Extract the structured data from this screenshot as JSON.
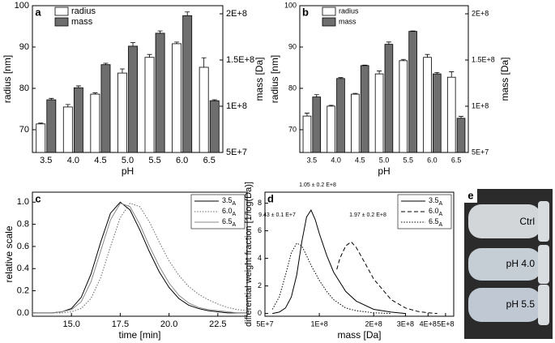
{
  "chart_data": [
    {
      "panel": "a",
      "type": "bar",
      "categories": [
        "3.5",
        "4.0",
        "4.5",
        "5.0",
        "5.5",
        "6.0",
        "6.5"
      ],
      "xlabel": "pH",
      "ylabel": "radius [nm]",
      "y2label": "mass [Da]",
      "ylim": [
        64.5,
        100
      ],
      "yticks": [
        70,
        80,
        90,
        100
      ],
      "y2lim": [
        50000000,
        208800000
      ],
      "y2ticks": [
        {
          "value": 50000000,
          "label": "5E+7"
        },
        {
          "value": 100000000,
          "label": "1E+8"
        },
        {
          "value": 150000000,
          "label": "1.5E+8"
        },
        {
          "value": 200000000,
          "label": "2E+8"
        }
      ],
      "legend": "upper left",
      "series": [
        {
          "name": "radius",
          "color": "#ffffff",
          "values": [
            71.4,
            75.5,
            78.6,
            83.7,
            87.5,
            90.8,
            85.1
          ],
          "errors": [
            0.2,
            0.6,
            0.3,
            1.0,
            0.7,
            0.4,
            2.3
          ]
        },
        {
          "name": "mass",
          "color": "#6e6e6e",
          "axis": "y2",
          "values": [
            107000000,
            120000000,
            145000000,
            165000000,
            179000000,
            198000000,
            106000000
          ],
          "errors": [
            1500000,
            2000000,
            1500000,
            4000000,
            2500000,
            4000000,
            1000000
          ]
        }
      ]
    },
    {
      "panel": "b",
      "type": "bar",
      "categories": [
        "3.5",
        "4.0",
        "4.5",
        "5.0",
        "5.5",
        "6.0",
        "6.5"
      ],
      "xlabel": "pH",
      "ylabel": "radius [nm]",
      "y2label": "mass [Da]",
      "ylim": [
        64.5,
        100
      ],
      "yticks": [
        70,
        80,
        90,
        100
      ],
      "y2lim": [
        50000000,
        208800000
      ],
      "y2ticks": [
        {
          "value": 50000000,
          "label": "5E+7"
        },
        {
          "value": 100000000,
          "label": "1E+8"
        },
        {
          "value": 150000000,
          "label": "1.5E+8"
        },
        {
          "value": 200000000,
          "label": "2E+8"
        }
      ],
      "legend": "upper left",
      "series": [
        {
          "name": "radius",
          "color": "#ffffff",
          "values": [
            73.3,
            75.7,
            78.6,
            83.5,
            86.7,
            87.5,
            82.7
          ],
          "errors": [
            0.7,
            0.2,
            0.2,
            0.7,
            0.3,
            0.7,
            1.3
          ]
        },
        {
          "name": "mass",
          "color": "#6e6e6e",
          "axis": "y2",
          "values": [
            110000000,
            130000000,
            144000000,
            167000000,
            181000000,
            135000000,
            87000000
          ],
          "errors": [
            2500000,
            1000000,
            500000,
            2500000,
            500000,
            1500000,
            2000000
          ]
        }
      ]
    },
    {
      "panel": "c",
      "type": "line",
      "xlabel": "time [min]",
      "ylabel": "relative scale",
      "xlim": [
        13,
        24
      ],
      "xticks": [
        {
          "value": 15,
          "label": "15.0"
        },
        17.5,
        {
          "value": 20,
          "label": "20.0"
        },
        22.5
      ],
      "ylim": [
        -0.03,
        1.09
      ],
      "yticks": [
        {
          "value": 0,
          "label": "0.0"
        },
        0.2,
        0.4,
        0.6,
        0.8,
        {
          "value": 1,
          "label": "1.0"
        }
      ],
      "legend": "upper right",
      "series": [
        {
          "name": "3.5",
          "subscript": "A",
          "color": "#000000",
          "dash": "solid",
          "x": [
            13,
            14,
            14.5,
            15,
            15.5,
            16,
            16.5,
            17,
            17.5,
            18,
            18.5,
            19,
            19.5,
            20,
            20.5,
            21,
            21.5,
            22,
            22.5,
            23,
            23.5,
            24
          ],
          "values": [
            0,
            0,
            0.01,
            0.04,
            0.14,
            0.35,
            0.64,
            0.9,
            1.0,
            0.93,
            0.75,
            0.55,
            0.37,
            0.23,
            0.13,
            0.07,
            0.04,
            0.02,
            0.01,
            0,
            0,
            0
          ]
        },
        {
          "name": "6.0",
          "subscript": "A",
          "color": "#666666",
          "dash": "dotted",
          "x": [
            13,
            14,
            14.5,
            15,
            15.5,
            16,
            16.5,
            17,
            17.5,
            18,
            18.5,
            19,
            19.5,
            20,
            20.5,
            21,
            21.5,
            22,
            22.5,
            23,
            23.5,
            24
          ],
          "values": [
            0,
            0,
            0,
            0.01,
            0.04,
            0.13,
            0.32,
            0.6,
            0.86,
            0.99,
            0.96,
            0.82,
            0.64,
            0.47,
            0.34,
            0.24,
            0.17,
            0.12,
            0.08,
            0.05,
            0.03,
            0.02
          ]
        },
        {
          "name": "6.5",
          "subscript": "A",
          "color": "#888888",
          "dash": "solid",
          "x": [
            13,
            14,
            14.5,
            15,
            15.5,
            16,
            16.5,
            17,
            17.5,
            18,
            18.5,
            19,
            19.5,
            20,
            20.5,
            21,
            21.5,
            22,
            22.5,
            23,
            23.5,
            24
          ],
          "values": [
            0,
            0,
            0.01,
            0.03,
            0.1,
            0.28,
            0.56,
            0.84,
            0.99,
            0.96,
            0.8,
            0.6,
            0.42,
            0.27,
            0.16,
            0.09,
            0.05,
            0.03,
            0.02,
            0.01,
            0,
            0
          ]
        }
      ]
    },
    {
      "panel": "d",
      "type": "line",
      "xscale": "log",
      "xlabel": "mass [Da]",
      "ylabel": "differential weight fraction [1/log(Da)]",
      "xlim": [
        50000000,
        555000000
      ],
      "xticks": [
        {
          "value": 50000000,
          "label": "5E+7"
        },
        {
          "value": 100000000,
          "label": "1E+8"
        },
        {
          "value": 200000000,
          "label": "2E+8"
        },
        {
          "value": 300000000,
          "label": "3E+8"
        },
        {
          "value": 400000000,
          "label": "4E+8"
        },
        {
          "value": 500000000,
          "label": "5E+8"
        }
      ],
      "ylim": [
        -0.2,
        8.8
      ],
      "yticks": [
        0,
        2,
        4,
        6,
        8
      ],
      "legend": "upper right",
      "annotations": [
        "1.05 ± 0.2 E+8",
        "9.43 ± 0.1 E+7",
        "1.97 ± 0.2 E+8"
      ],
      "series": [
        {
          "name": "3.5",
          "subscript": "A",
          "color": "#000000",
          "dash": "solid",
          "x": [
            55000000,
            60000000,
            65000000,
            70000000,
            75000000,
            80000000,
            85000000,
            90000000,
            95000000,
            100000000,
            110000000,
            120000000,
            140000000,
            160000000,
            200000000,
            250000000,
            300000000
          ],
          "values": [
            0,
            0.1,
            0.4,
            1.2,
            2.8,
            5.2,
            7.0,
            7.5,
            6.8,
            5.8,
            4.2,
            3.0,
            1.6,
            0.9,
            0.3,
            0.1,
            0
          ]
        },
        {
          "name": "6.0",
          "subscript": "A",
          "color": "#000000",
          "dash": "dashed",
          "x": [
            125000000,
            130000000,
            140000000,
            150000000,
            160000000,
            180000000,
            200000000,
            250000000,
            300000000,
            350000000,
            400000000,
            450000000
          ],
          "values": [
            3.2,
            4.0,
            4.9,
            5.2,
            4.8,
            3.6,
            2.5,
            1.0,
            0.4,
            0.15,
            0.05,
            0
          ]
        },
        {
          "name": "6.5",
          "subscript": "A",
          "color": "#000000",
          "dash": "dotted",
          "x": [
            55000000,
            60000000,
            65000000,
            70000000,
            75000000,
            80000000,
            85000000,
            90000000,
            100000000,
            110000000,
            120000000,
            140000000,
            160000000,
            200000000,
            250000000
          ],
          "values": [
            0.3,
            1.2,
            2.8,
            4.4,
            5.1,
            4.9,
            4.2,
            3.5,
            2.4,
            1.6,
            1.0,
            0.4,
            0.2,
            0.05,
            0
          ]
        }
      ]
    }
  ],
  "photo": {
    "panel": "e",
    "labels": [
      "Ctrl",
      "pH 4.0",
      "pH 5.5"
    ]
  }
}
